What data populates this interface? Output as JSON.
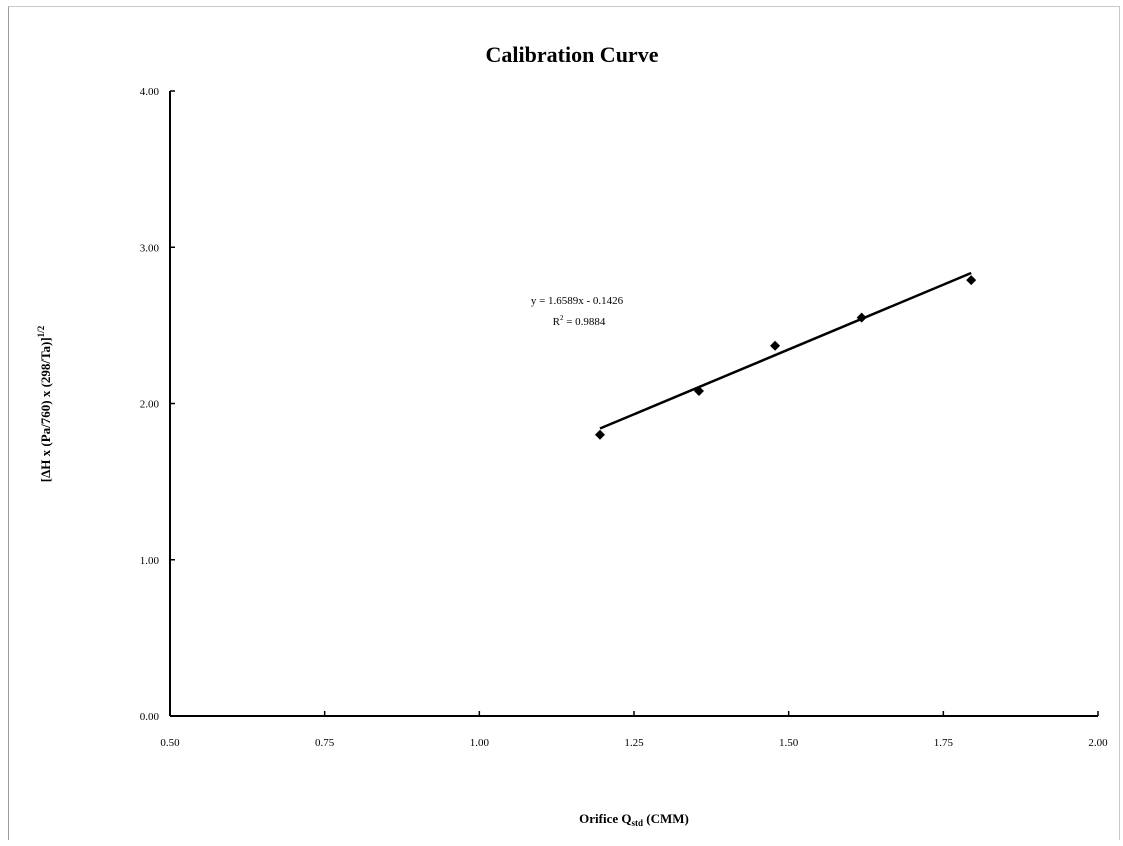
{
  "chart_data": {
    "type": "scatter",
    "title": "Calibration Curve",
    "xlabel": {
      "main": "Orifice Q",
      "subscript": "std",
      "suffix": " (CMM)"
    },
    "ylabel": {
      "main": "[ΔH x (Pa/760) x (298/Ta)]",
      "superscript": "1/2"
    },
    "xlim": [
      0.5,
      2.0
    ],
    "ylim": [
      0.0,
      4.0
    ],
    "x_ticks": [
      "0.50",
      "0.75",
      "1.00",
      "1.25",
      "1.50",
      "1.75",
      "2.00"
    ],
    "y_ticks": [
      "0.00",
      "1.00",
      "2.00",
      "3.00",
      "4.00"
    ],
    "series": [
      {
        "marker": "diamond",
        "x": [
          1.195,
          1.355,
          1.478,
          1.618,
          1.795
        ],
        "y": [
          1.8,
          2.08,
          2.37,
          2.55,
          2.79
        ]
      }
    ],
    "trendline": {
      "type": "linear",
      "slope": 1.6589,
      "intercept": -0.1426,
      "x_range": [
        1.195,
        1.795
      ],
      "equation": "y = 1.6589x - 0.1426",
      "r2_prefix": "R",
      "r2_superscript": "2",
      "r2_value": " = 0.9884"
    },
    "grid": false,
    "legend": "none"
  }
}
